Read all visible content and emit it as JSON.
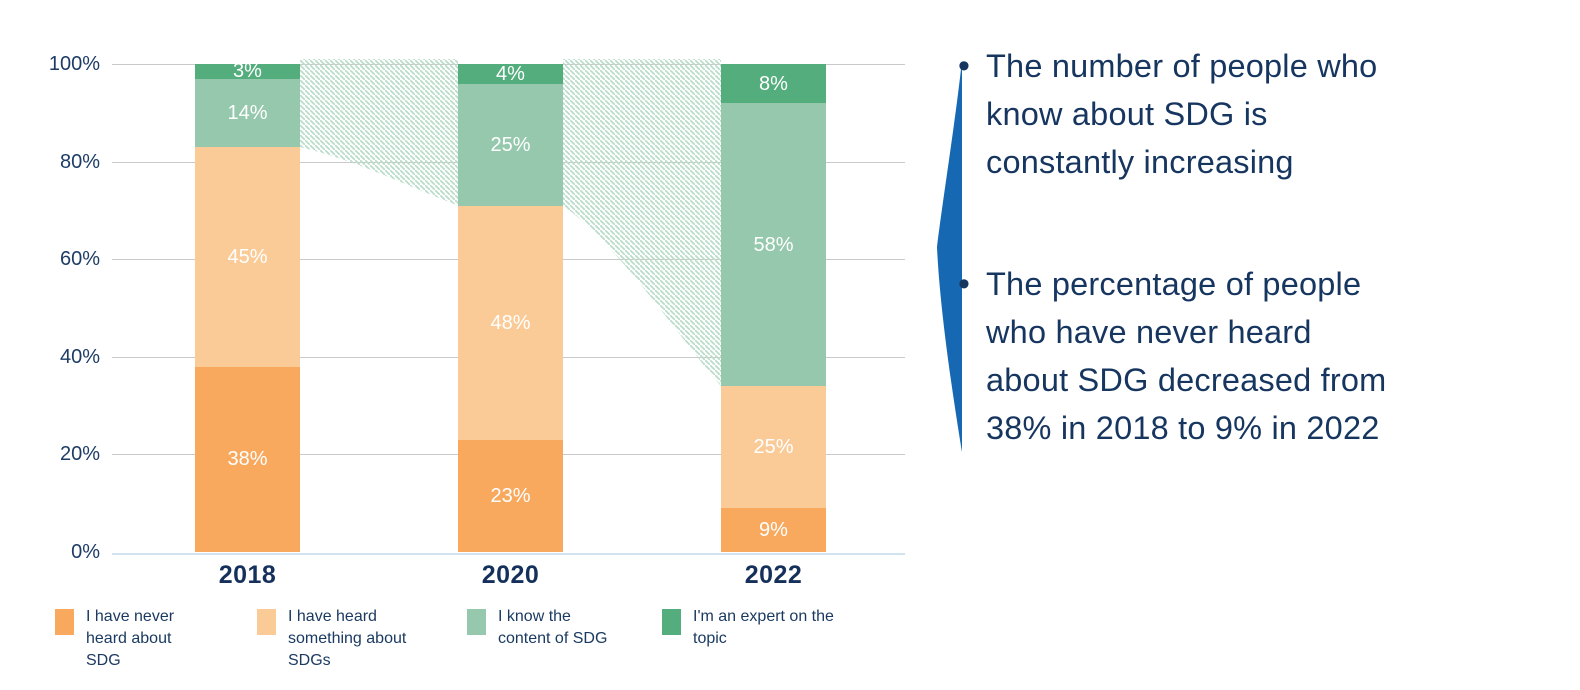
{
  "chart_data": {
    "type": "bar",
    "stacked": true,
    "categories": [
      "2018",
      "2020",
      "2022"
    ],
    "series": [
      {
        "name": "I have never heard about SDG",
        "color": "#F8A95D",
        "values": [
          38,
          23,
          9
        ]
      },
      {
        "name": "I have heard something about SDGs",
        "color": "#FBCB97",
        "values": [
          45,
          48,
          25
        ]
      },
      {
        "name": "I know the content of SDG",
        "color": "#95C8AC",
        "values": [
          14,
          25,
          58
        ]
      },
      {
        "name": "I'm an expert on the topic",
        "color": "#54AD7C",
        "values": [
          3,
          4,
          8
        ]
      }
    ],
    "value_label_suffix": "%",
    "yticks": [
      "0%",
      "20%",
      "40%",
      "60%",
      "80%",
      "100%"
    ],
    "ylim": [
      0,
      100
    ],
    "grid": true,
    "legend_position": "bottom",
    "flow_band": {
      "style": "diagonal-hatch",
      "color": "#B9DDC9"
    }
  },
  "bullet_char": "•",
  "bullets": [
    {
      "lines": [
        "The number of people who",
        "know about SDG is",
        "constantly increasing"
      ]
    },
    {
      "lines": [
        "The percentage of people",
        "who have never heard",
        "about SDG decreased from",
        "38% in 2018 to 9% in 2022"
      ]
    }
  ],
  "colors": {
    "text_navy": "#16355F",
    "axis_tick": "#1D3C66",
    "year_label": "#14305B",
    "gridline": "#C9CAC9",
    "baseline": "#CFE4F0",
    "accent_blue": "#1668B2",
    "hatch_green": "#B9DDC9"
  }
}
